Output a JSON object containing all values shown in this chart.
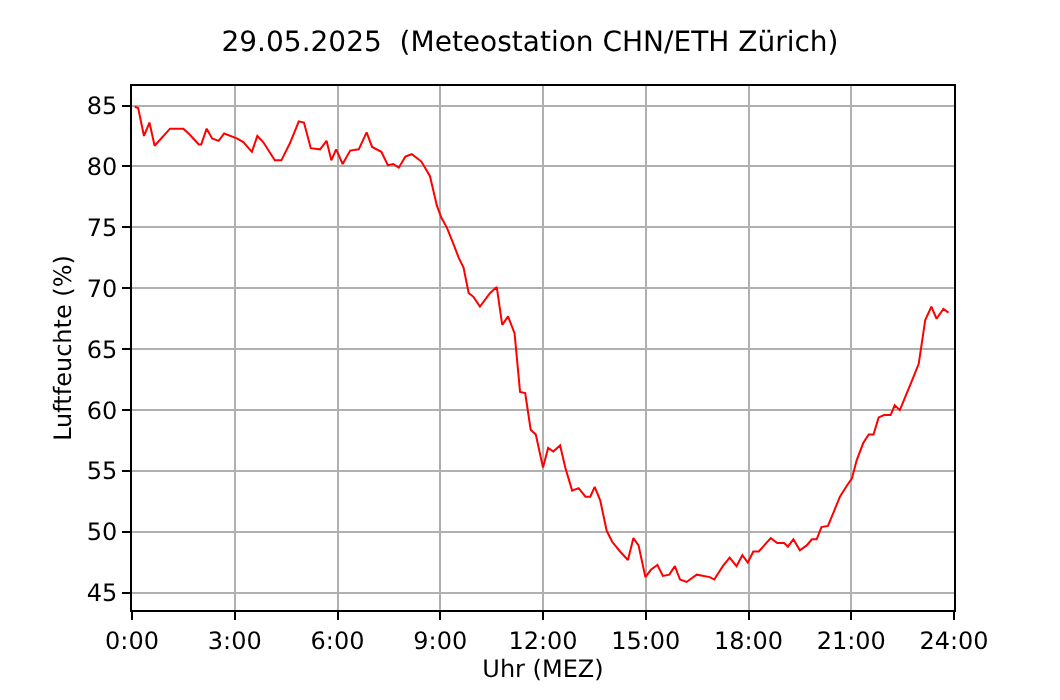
{
  "chart_data": {
    "type": "line",
    "title": "29.05.2025  (Meteostation CHN/ETH Zürich)",
    "xlabel": "Uhr (MEZ)",
    "ylabel": "Luftfeuchte (%)",
    "x": [
      0.08,
      0.18,
      0.35,
      0.51,
      0.66,
      1.11,
      1.5,
      1.69,
      1.95,
      2.02,
      2.18,
      2.34,
      2.53,
      2.69,
      3.06,
      3.25,
      3.5,
      3.66,
      3.83,
      4.17,
      4.36,
      4.61,
      4.87,
      5.02,
      5.22,
      5.49,
      5.68,
      5.82,
      5.96,
      6.15,
      6.37,
      6.62,
      6.85,
      7.01,
      7.28,
      7.47,
      7.63,
      7.79,
      7.98,
      8.17,
      8.45,
      8.7,
      8.9,
      9.03,
      9.19,
      9.39,
      9.54,
      9.68,
      9.83,
      9.97,
      10.16,
      10.45,
      10.65,
      10.81,
      10.98,
      11.17,
      11.33,
      11.48,
      11.64,
      11.79,
      12.0,
      12.15,
      12.3,
      12.5,
      12.65,
      12.85,
      13.04,
      13.24,
      13.38,
      13.51,
      13.67,
      13.86,
      14.02,
      14.25,
      14.48,
      14.64,
      14.79,
      14.99,
      15.15,
      15.34,
      15.5,
      15.69,
      15.85,
      16.0,
      16.19,
      16.49,
      16.87,
      17.0,
      17.25,
      17.45,
      17.65,
      17.82,
      17.98,
      18.14,
      18.3,
      18.49,
      18.65,
      18.84,
      19.04,
      19.15,
      19.31,
      19.5,
      19.7,
      19.85,
      19.99,
      20.13,
      20.32,
      20.48,
      20.67,
      20.87,
      21.02,
      21.16,
      21.35,
      21.51,
      21.65,
      21.8,
      21.96,
      22.15,
      22.27,
      22.42,
      22.58,
      22.77,
      22.97,
      23.16,
      23.34,
      23.49,
      23.69,
      23.84
    ],
    "series": [
      {
        "color": "#ff0000",
        "values": [
          84.9,
          84.8,
          82.5,
          83.6,
          81.7,
          83.1,
          83.1,
          82.6,
          81.8,
          81.8,
          83.1,
          82.3,
          82.1,
          82.7,
          82.3,
          82.0,
          81.2,
          82.5,
          82.0,
          80.5,
          80.5,
          81.9,
          83.7,
          83.6,
          81.5,
          81.4,
          82.1,
          80.5,
          81.4,
          80.2,
          81.3,
          81.4,
          82.8,
          81.6,
          81.2,
          80.1,
          80.2,
          79.9,
          80.8,
          81.0,
          80.4,
          79.2,
          76.8,
          75.8,
          75.0,
          73.6,
          72.5,
          71.7,
          69.6,
          69.3,
          68.5,
          69.6,
          70.1,
          67.0,
          67.7,
          66.3,
          61.5,
          61.4,
          58.4,
          58.0,
          55.3,
          56.9,
          56.6,
          57.1,
          55.3,
          53.4,
          53.6,
          52.9,
          52.9,
          53.7,
          52.6,
          50.1,
          49.2,
          48.4,
          47.7,
          49.5,
          48.9,
          46.3,
          46.9,
          47.3,
          46.4,
          46.5,
          47.2,
          46.1,
          45.9,
          46.5,
          46.3,
          46.1,
          47.2,
          47.9,
          47.2,
          48.1,
          47.5,
          48.4,
          48.4,
          49.0,
          49.5,
          49.1,
          49.1,
          48.8,
          49.4,
          48.5,
          48.9,
          49.4,
          49.4,
          50.4,
          50.5,
          51.6,
          52.9,
          53.8,
          54.4,
          55.9,
          57.3,
          58.0,
          58.0,
          59.4,
          59.6,
          59.6,
          60.4,
          60.0,
          61.1,
          62.4,
          63.8,
          67.4,
          68.5,
          67.5,
          68.3,
          68.0
        ]
      }
    ],
    "xlim": [
      0,
      24
    ],
    "xticks": [
      {
        "value": 0,
        "label": "0:00"
      },
      {
        "value": 3,
        "label": "3:00"
      },
      {
        "value": 6,
        "label": "6:00"
      },
      {
        "value": 9,
        "label": "9:00"
      },
      {
        "value": 12,
        "label": "12:00"
      },
      {
        "value": 15,
        "label": "15:00"
      },
      {
        "value": 18,
        "label": "18:00"
      },
      {
        "value": 21,
        "label": "21:00"
      },
      {
        "value": 24,
        "label": "24:00"
      }
    ],
    "ylim": [
      43.6,
      86.6
    ],
    "yticks": [
      45,
      50,
      55,
      60,
      65,
      70,
      75,
      80,
      85
    ],
    "grid": true
  }
}
